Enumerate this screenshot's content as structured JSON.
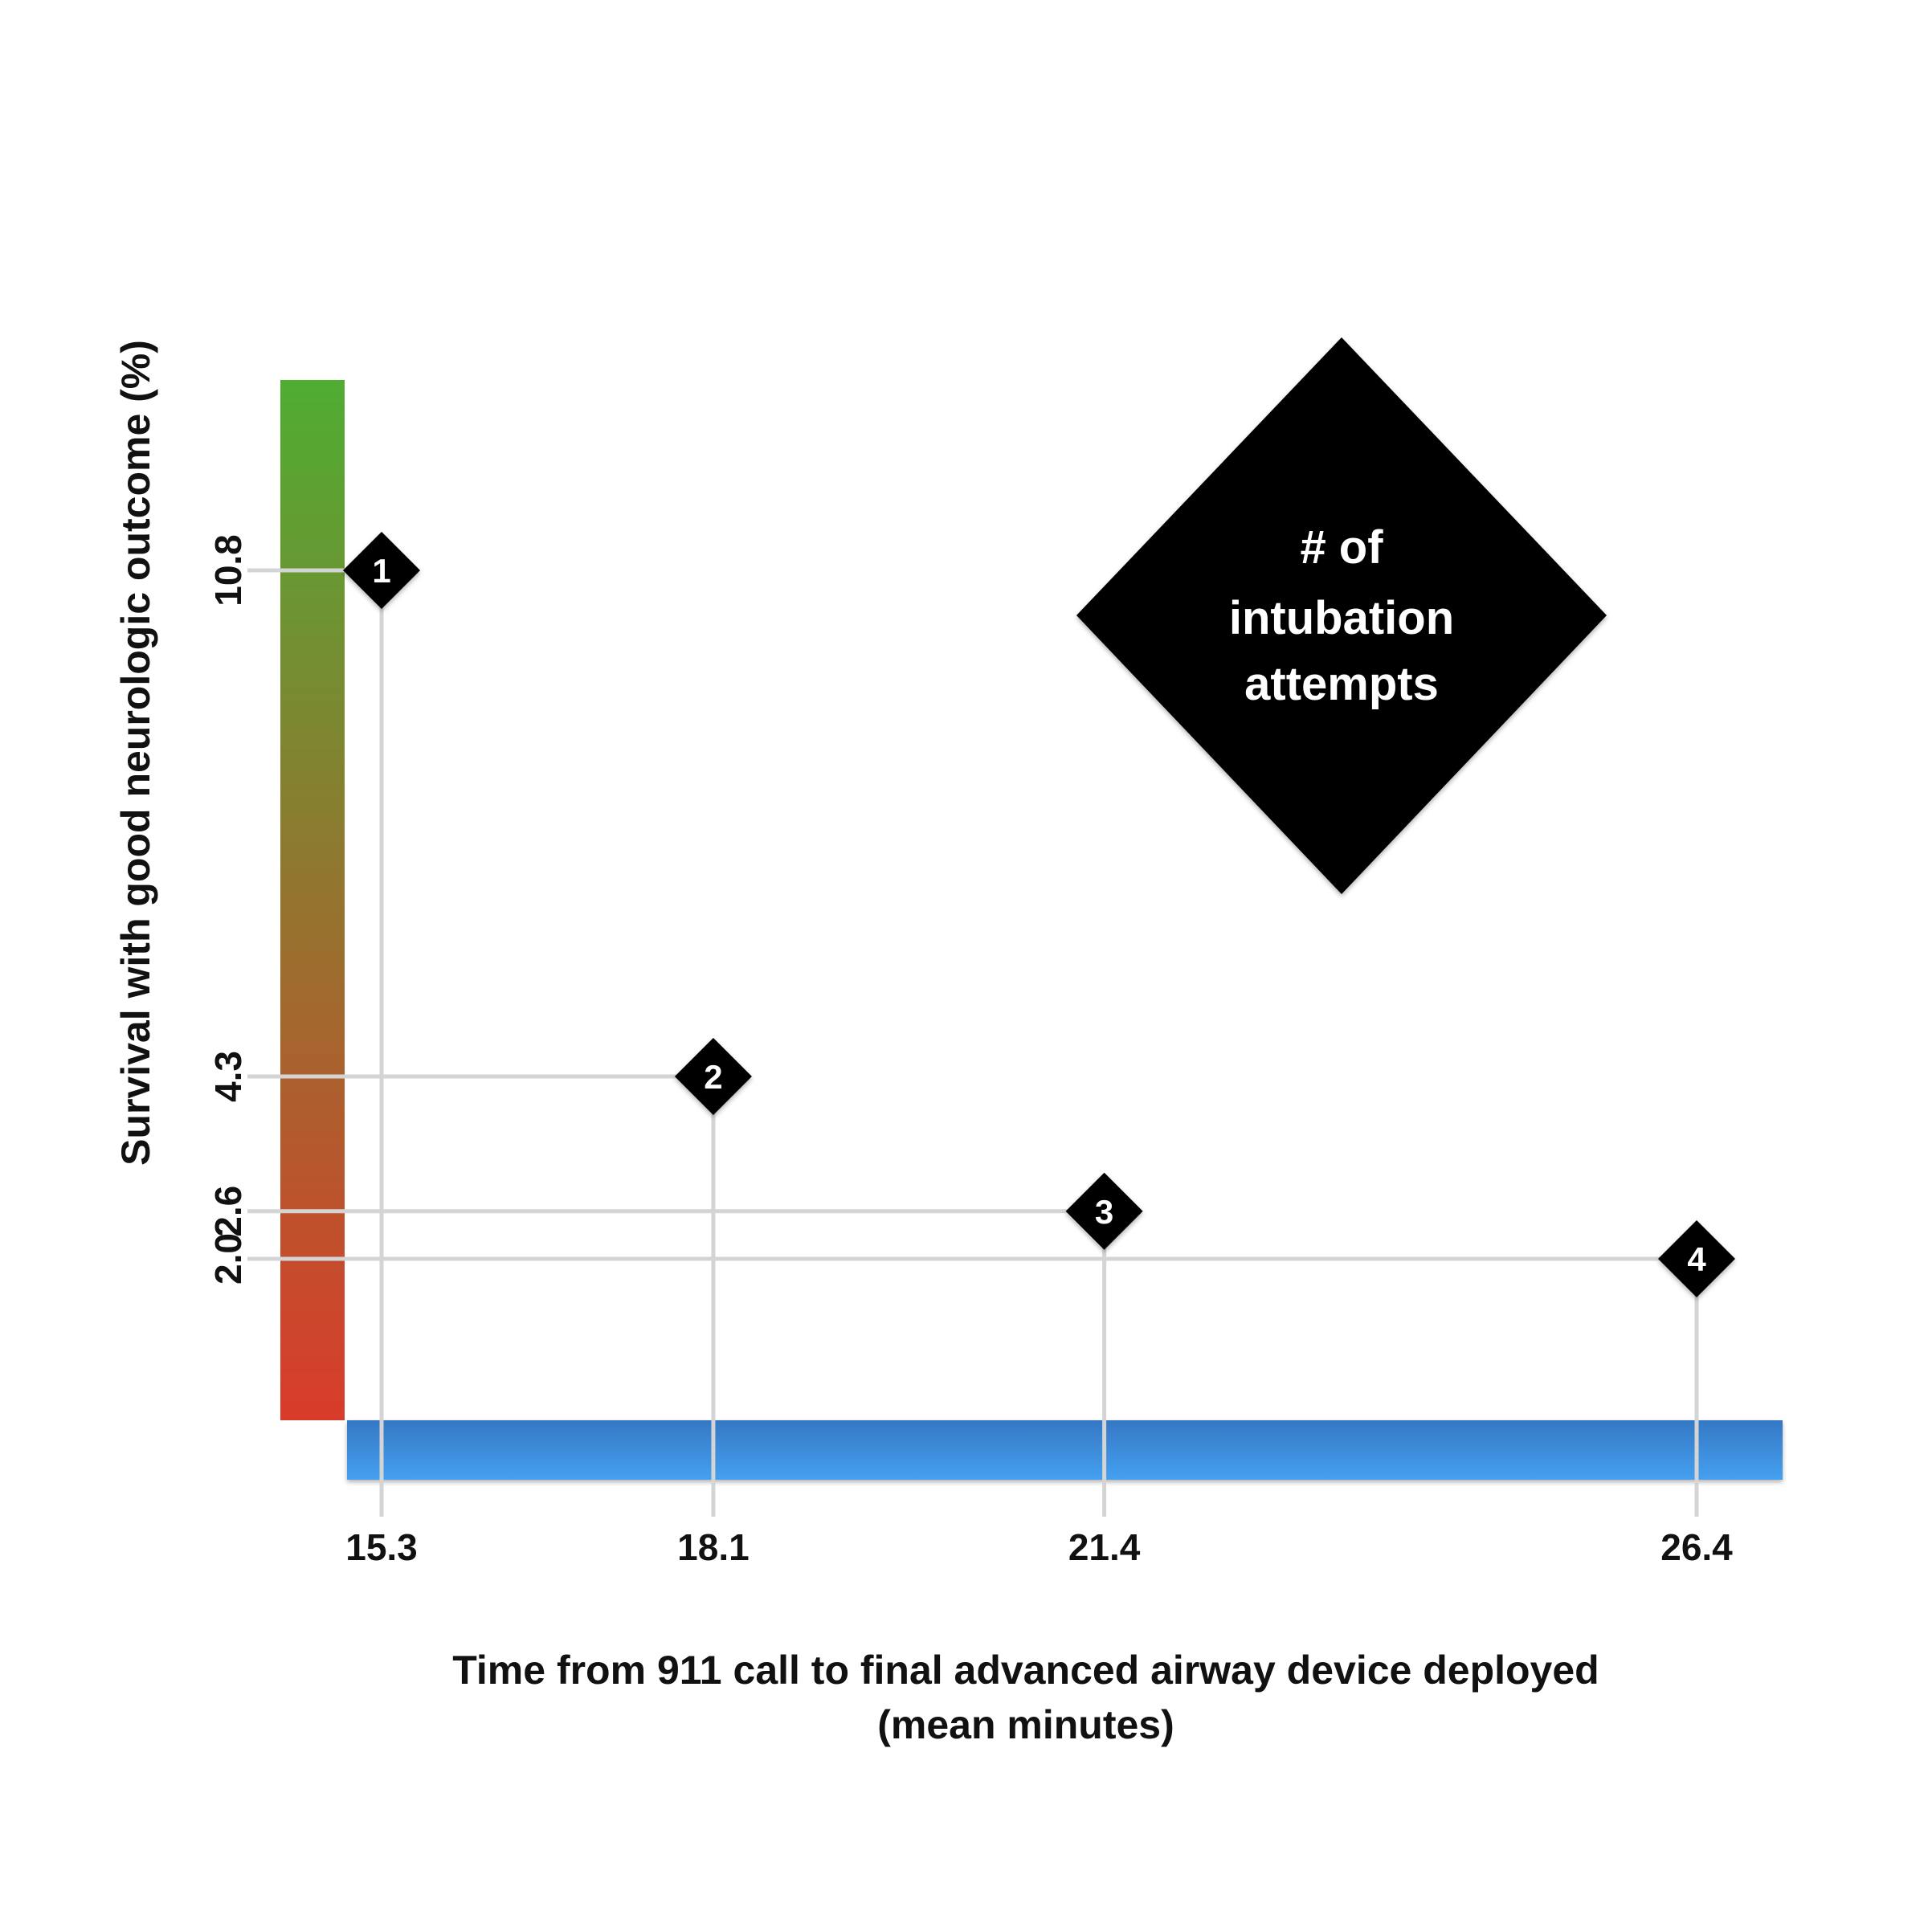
{
  "chart_data": {
    "type": "scatter",
    "title": "",
    "xlabel": "Time from 911 call to final advanced airway device deployed",
    "xlabel_line2": "(mean minutes)",
    "ylabel": "Survival with good neurologic outcome (%)",
    "legend_text": [
      "# of",
      "intubation",
      "attempts"
    ],
    "y_axis_colorbar": {
      "top_color": "#4fad33",
      "bottom_color": "#d93b2b"
    },
    "x_axis_bar_color": "#3b8fdc",
    "marker_color": "#000000",
    "guide_line_color": "#d4d4d4",
    "grid": false,
    "points": [
      {
        "label": "1",
        "x": 15.3,
        "y": 10.8,
        "x_tick": "15.3",
        "y_tick": "10.8"
      },
      {
        "label": "2",
        "x": 18.1,
        "y": 4.3,
        "x_tick": "18.1",
        "y_tick": "4.3"
      },
      {
        "label": "3",
        "x": 21.4,
        "y": 2.6,
        "x_tick": "21.4",
        "y_tick": "2.6"
      },
      {
        "label": "4",
        "x": 26.4,
        "y": 2.0,
        "x_tick": "26.4",
        "y_tick": "2.0"
      }
    ]
  }
}
